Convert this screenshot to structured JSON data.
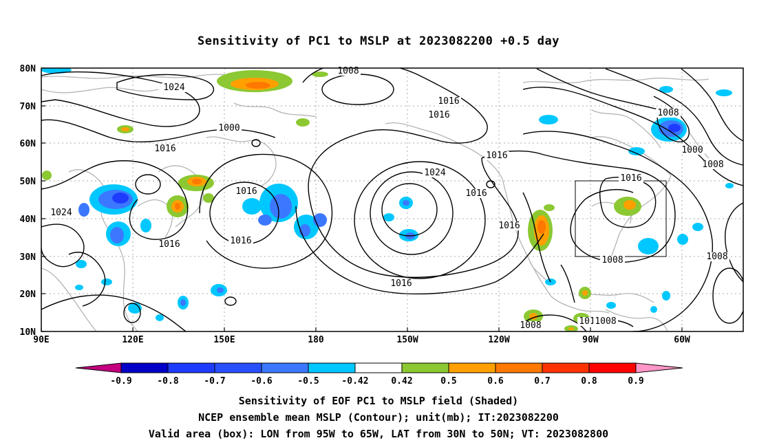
{
  "title": "Sensitivity of PC1 to MSLP at 2023082200 +0.5 day",
  "map": {
    "lat_ticks": [
      "80N",
      "70N",
      "60N",
      "50N",
      "40N",
      "30N",
      "20N",
      "10N"
    ],
    "lon_ticks": [
      "90E",
      "120E",
      "150E",
      "180",
      "150W",
      "120W",
      "90W",
      "60W"
    ],
    "valid_box": {
      "lon_from": "95W",
      "lon_to": "65W",
      "lat_from": "30N",
      "lat_to": "50N"
    },
    "contour_labels": [
      "1008",
      "1024",
      "1016",
      "1016",
      "1000",
      "1008",
      "1016",
      "1000",
      "1008",
      "1016",
      "1024",
      "1016",
      "1016",
      "1016",
      "1024",
      "1016",
      "1016",
      "1016",
      "1008",
      "1008",
      "1016",
      "1008",
      "1016",
      "1008"
    ]
  },
  "colorbar": {
    "labels": [
      "-0.9",
      "-0.8",
      "-0.7",
      "-0.6",
      "-0.5",
      "-0.42",
      "0.42",
      "0.5",
      "0.6",
      "0.7",
      "0.8",
      "0.9"
    ],
    "colors": [
      "#c4007e",
      "#0000c8",
      "#1e3cff",
      "#2850ff",
      "#3c78ff",
      "#00c8ff",
      "#ffffff",
      "#8cc832",
      "#ffa000",
      "#ff7800",
      "#ff3200",
      "#ff0000",
      "#ff96c8"
    ]
  },
  "footer": {
    "line1": "Sensitivity of EOF PC1 to MSLP field (Shaded)",
    "line2": "NCEP ensemble mean MSLP (Contour); unit(mb); IT:2023082200",
    "line3": "Valid area (box): LON from 95W to 65W, LAT from 30N to 50N; VT: 2023082800"
  }
}
